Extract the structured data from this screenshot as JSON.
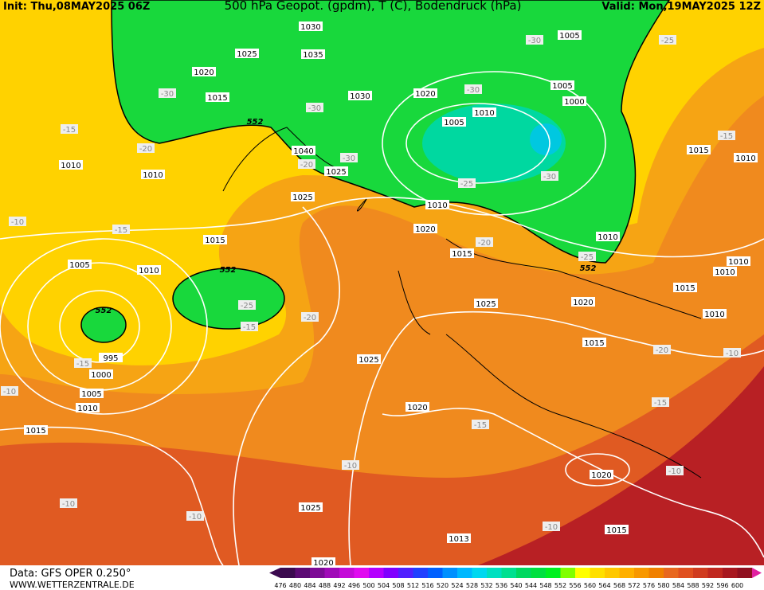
{
  "header": {
    "init": "Init: Thu,08MAY2025 06Z",
    "title": "500 hPa Geopot. (gpdm), T (C), Bodendruck (hPa)",
    "valid": "Valid: Mon,19MAY2025 12Z"
  },
  "footer": {
    "source": "Data: GFS OPER 0.250°",
    "site": "WWW.WETTERZENTRALE.DE"
  },
  "map_labels": [
    "1030",
    "1005",
    "1025",
    "1035",
    "-30",
    "-25",
    "1020",
    "1005",
    "1000",
    "-30",
    "1015",
    "1030",
    "1020",
    "-30",
    "-30",
    "1010",
    "552",
    "1005",
    "-15",
    "-15",
    "1015",
    "-20",
    "1040",
    "-30",
    "1010",
    "1010",
    "1010",
    "-20",
    "1025",
    "-30",
    "-25",
    "1025",
    "1010",
    "-10",
    "-15",
    "1020",
    "1015",
    "-20",
    "1015",
    "1010",
    "-25",
    "552",
    "1010",
    "1005",
    "1010",
    "552",
    "1010",
    "1015",
    "552",
    "-25",
    "1025",
    "1020",
    "1010",
    "-20",
    "-15",
    "1015",
    "-20",
    "-10",
    "995",
    "-15",
    "1000",
    "1025",
    "-10",
    "1005",
    "1010",
    "-15",
    "1020",
    "-15",
    "1015",
    "-10",
    "1020",
    "-10",
    "-10",
    "1025",
    "-10",
    "-10",
    "1015",
    "1013",
    "1020"
  ],
  "colorbar": {
    "ticks": [
      476,
      480,
      484,
      488,
      492,
      496,
      500,
      504,
      508,
      512,
      516,
      520,
      524,
      528,
      532,
      536,
      540,
      544,
      548,
      552,
      556,
      560,
      564,
      568,
      572,
      576,
      580,
      584,
      588,
      592,
      596,
      600
    ],
    "colors": [
      "#3b0a4f",
      "#5c0a74",
      "#7d0a96",
      "#a00ab8",
      "#c40ad8",
      "#e00af0",
      "#b400ff",
      "#8000ff",
      "#5020ff",
      "#2040ff",
      "#0060ff",
      "#0090ff",
      "#00b8ff",
      "#00d8f0",
      "#00e0c0",
      "#00e090",
      "#00d860",
      "#00e040",
      "#00f020",
      "#80ff00",
      "#ffff00",
      "#ffe000",
      "#ffc800",
      "#ffb000",
      "#f89800",
      "#f08000",
      "#e86820",
      "#e05020",
      "#d03c20",
      "#c02820",
      "#a81820",
      "#901020"
    ]
  }
}
